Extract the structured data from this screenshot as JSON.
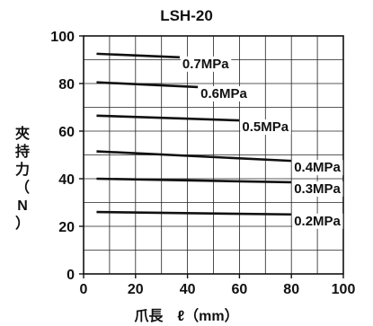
{
  "chart_data": {
    "type": "line",
    "title": "LSH-20",
    "xlabel": "爪長　ℓ（mm）",
    "ylabel_chars": [
      "夾",
      "持",
      "力",
      "（",
      "N",
      "）"
    ],
    "xlim": [
      0,
      100
    ],
    "ylim": [
      0,
      100
    ],
    "x_ticks": [
      0,
      20,
      40,
      60,
      80,
      100
    ],
    "y_ticks": [
      0,
      20,
      40,
      60,
      80,
      100
    ],
    "grid": true,
    "series": [
      {
        "name": "0.7MPa",
        "x": [
          5,
          37
        ],
        "y": [
          92.5,
          91
        ]
      },
      {
        "name": "0.6MPa",
        "x": [
          5,
          44
        ],
        "y": [
          80.5,
          78.5
        ]
      },
      {
        "name": "0.5MPa",
        "x": [
          5,
          60
        ],
        "y": [
          66.5,
          64.5
        ]
      },
      {
        "name": "0.4MPa",
        "x": [
          5,
          80
        ],
        "y": [
          51.5,
          47.5
        ]
      },
      {
        "name": "0.3MPa",
        "x": [
          5,
          80
        ],
        "y": [
          40,
          38.5
        ]
      },
      {
        "name": "0.2MPa",
        "x": [
          5,
          80
        ],
        "y": [
          26,
          25
        ]
      }
    ]
  }
}
